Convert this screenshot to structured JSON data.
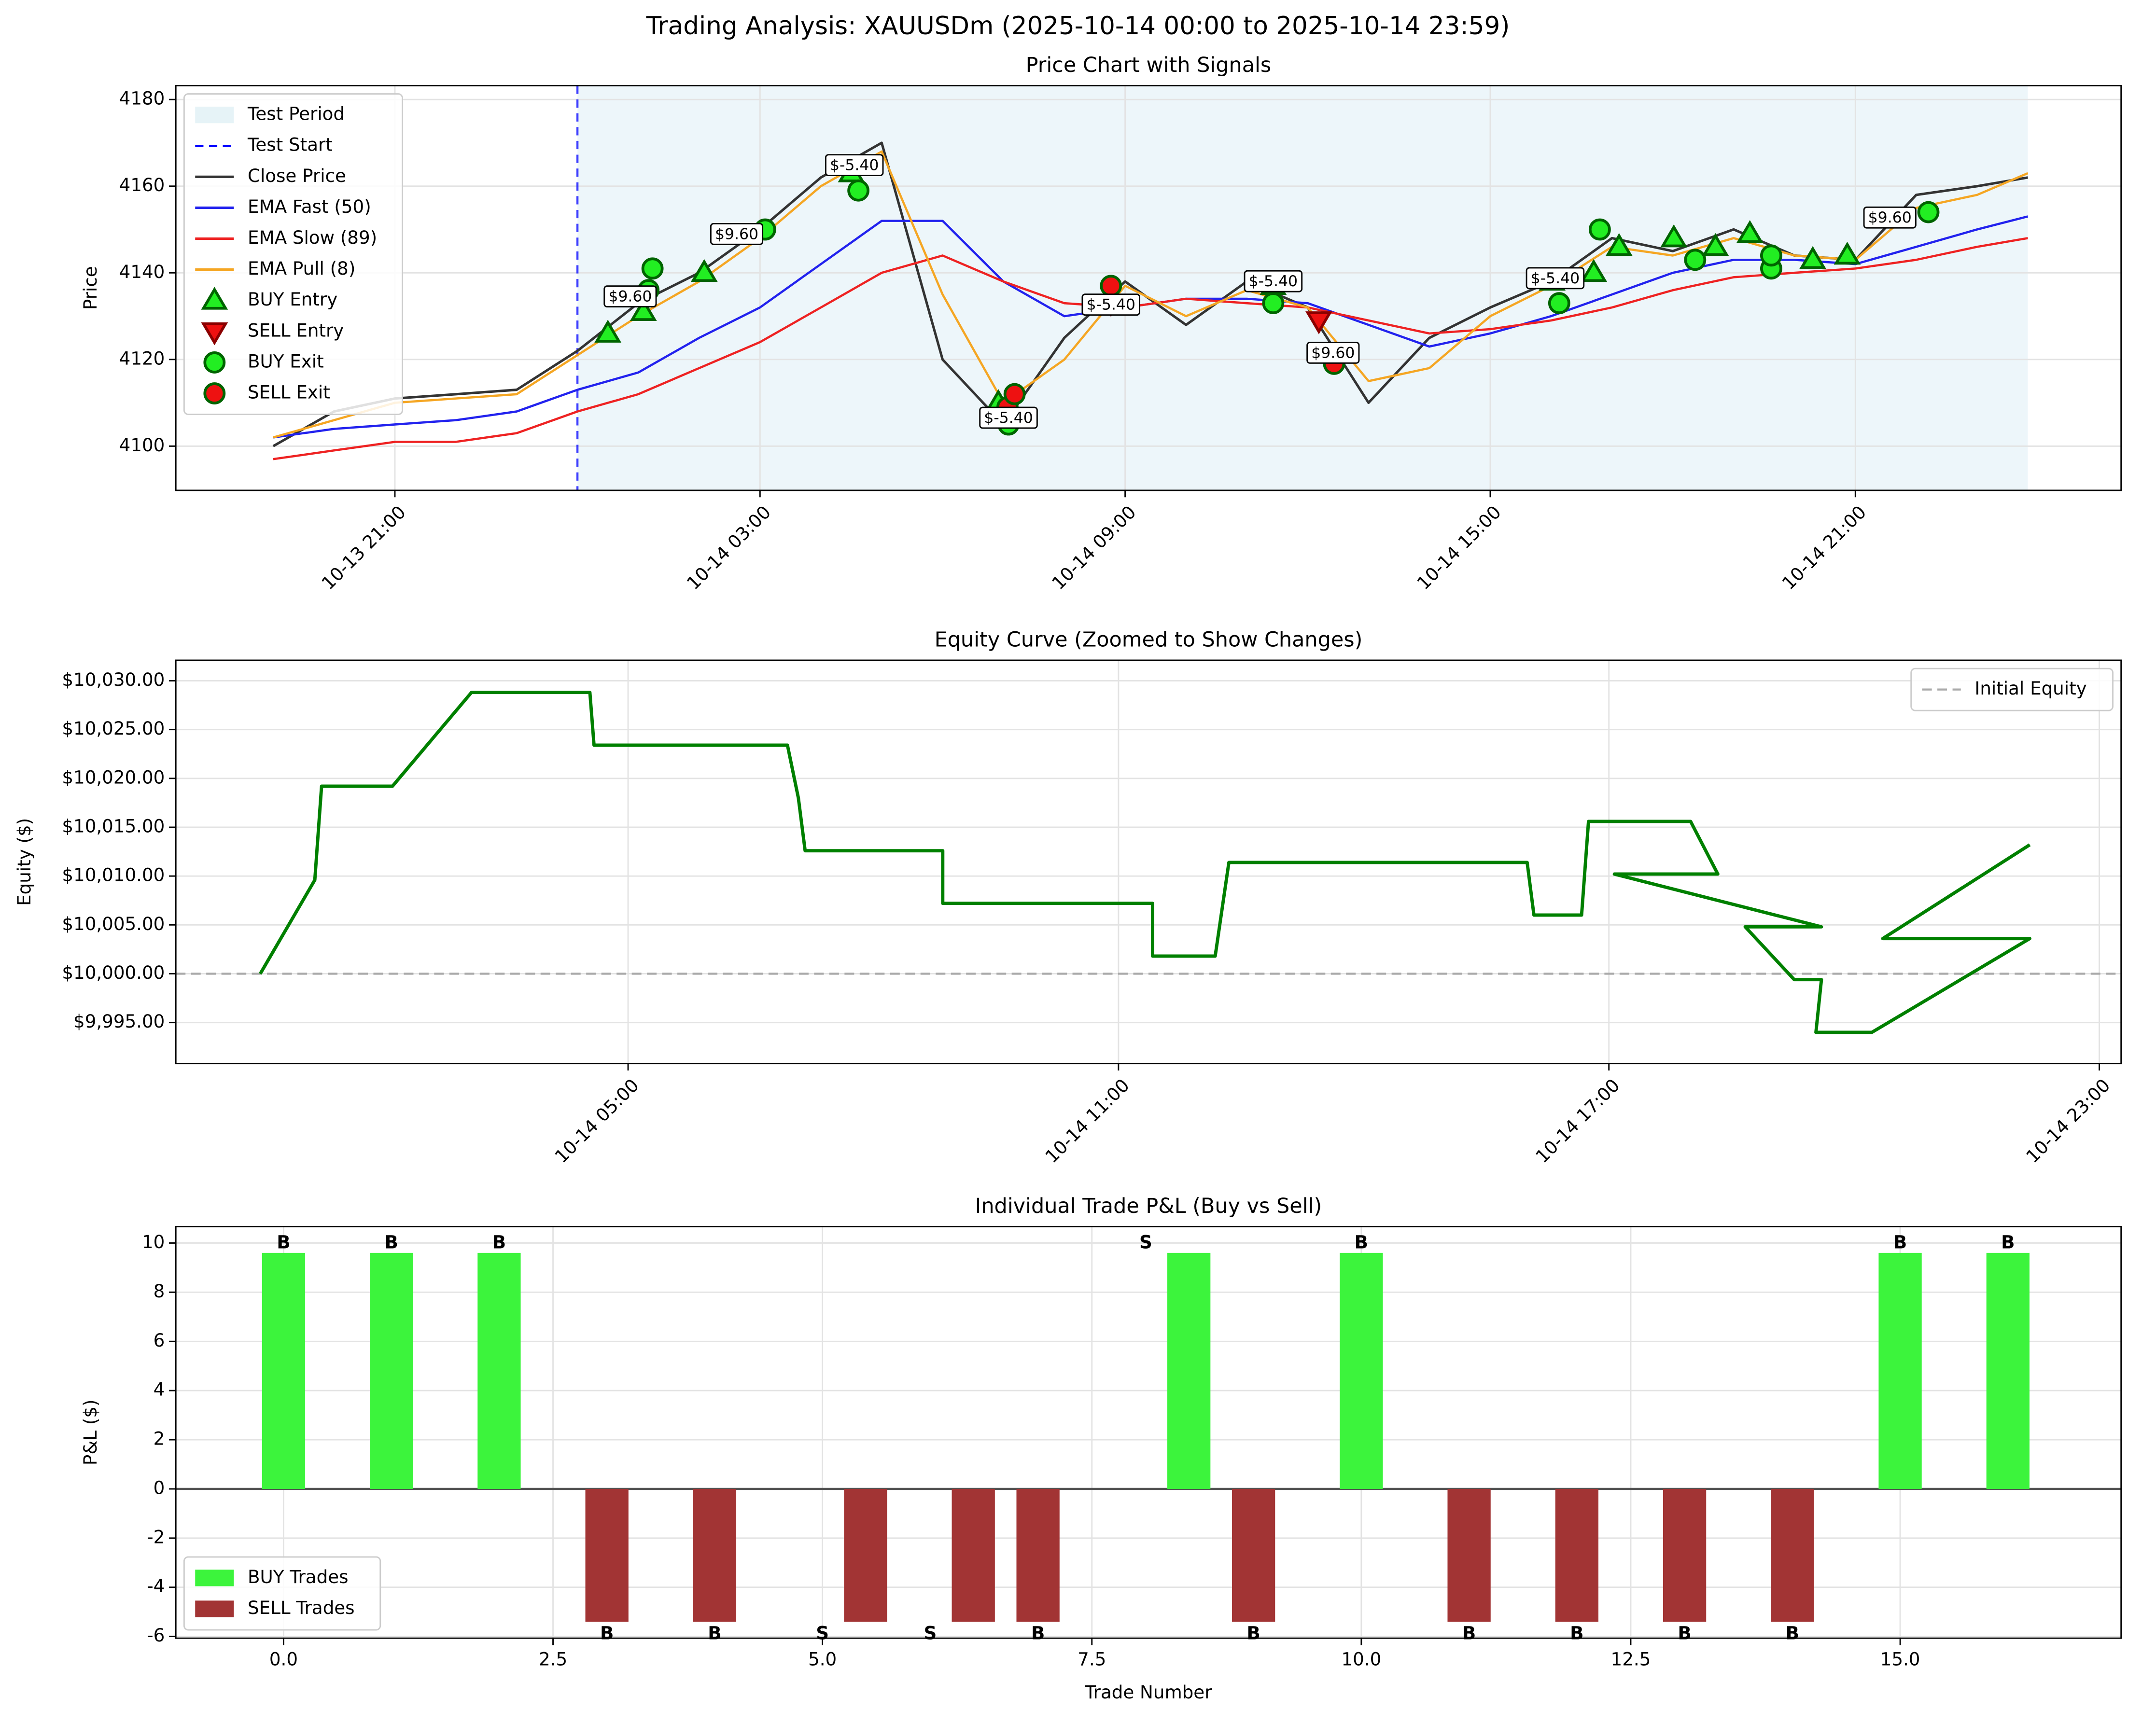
{
  "title": "Trading Analysis: XAUUSDm (2025-10-14 00:00 to 2025-10-14 23:59)",
  "chart_data": [
    {
      "type": "line",
      "title": "Price Chart with Signals",
      "ylabel": "Price",
      "x": [
        "10-13 19:00",
        "10-13 20:00",
        "10-13 21:00",
        "10-13 22:00",
        "10-13 23:00",
        "10-14 00:00",
        "10-14 01:00",
        "10-14 02:00",
        "10-14 03:00",
        "10-14 04:00",
        "10-14 05:00",
        "10-14 06:00",
        "10-14 07:00",
        "10-14 08:00",
        "10-14 09:00",
        "10-14 10:00",
        "10-14 11:00",
        "10-14 12:00",
        "10-14 13:00",
        "10-14 14:00",
        "10-14 15:00",
        "10-14 16:00",
        "10-14 17:00",
        "10-14 18:00",
        "10-14 19:00",
        "10-14 20:00",
        "10-14 21:00",
        "10-14 22:00",
        "10-14 23:00",
        "10-14 23:50"
      ],
      "xlim": [
        "10-13 17:24",
        "10-15 01:22"
      ],
      "xticks": [
        "10-13 21:00",
        "10-14 03:00",
        "10-14 09:00",
        "10-14 15:00",
        "10-14 21:00"
      ],
      "ylim": [
        4089.8,
        4183.2
      ],
      "yticks": [
        4100,
        4120,
        4140,
        4160,
        4180
      ],
      "grid": true,
      "legend": "upper left",
      "shaded_region": {
        "name": "Test Period",
        "color": "#add8e6",
        "from": "10-14 00:00",
        "to": "10-14 23:50"
      },
      "vline": {
        "name": "Test Start",
        "color": "#0000ff",
        "x": "10-14 00:00"
      },
      "series": [
        {
          "name": "Close Price",
          "color": "#333333",
          "values": [
            4100,
            4108,
            4111,
            4112,
            4113,
            4122,
            4133,
            4140,
            4150,
            4162,
            4170,
            4120,
            4105,
            4125,
            4138,
            4128,
            4138,
            4132,
            4110,
            4125,
            4132,
            4138,
            4148,
            4145,
            4150,
            4144,
            4143,
            4158,
            4160,
            4162
          ]
        },
        {
          "name": "EMA Fast (50)",
          "color": "#2222ee",
          "values": [
            4102,
            4104,
            4105,
            4106,
            4108,
            4113,
            4117,
            4125,
            4132,
            4142,
            4152,
            4152,
            4138,
            4130,
            4132,
            4134,
            4134,
            4133,
            4128,
            4123,
            4126,
            4130,
            4135,
            4140,
            4143,
            4143,
            4142,
            4146,
            4150,
            4153
          ]
        },
        {
          "name": "EMA Slow (89)",
          "color": "#ee2222",
          "values": [
            4097,
            4099,
            4101,
            4101,
            4103,
            4108,
            4112,
            4118,
            4124,
            4132,
            4140,
            4144,
            4138,
            4133,
            4132,
            4134,
            4133,
            4132,
            4129,
            4126,
            4127,
            4129,
            4132,
            4136,
            4139,
            4140,
            4141,
            4143,
            4146,
            4148
          ]
        },
        {
          "name": "EMA Pull (8)",
          "color": "#f5a623",
          "values": [
            4102,
            4106,
            4110,
            4111,
            4112,
            4121,
            4130,
            4138,
            4148,
            4160,
            4168,
            4135,
            4110,
            4120,
            4137,
            4130,
            4136,
            4132,
            4115,
            4118,
            4130,
            4137,
            4146,
            4144,
            4148,
            4144,
            4143,
            4155,
            4158,
            4163
          ]
        }
      ],
      "markers": [
        {
          "name": "BUY Entry",
          "shape": "triangle-up",
          "color": "#22ee22",
          "x": [
            "10-14 00:30",
            "10-14 01:05",
            "10-14 02:05",
            "10-14 04:30",
            "10-14 06:55",
            "10-14 11:26",
            "10-14 16:01",
            "10-14 16:42",
            "10-14 17:07",
            "10-14 18:01",
            "10-14 18:42",
            "10-14 19:16",
            "10-14 20:18",
            "10-14 20:52"
          ],
          "values": [
            4126,
            4131,
            4140,
            4163,
            4110,
            4137,
            4138,
            4140,
            4146,
            4148,
            4146,
            4149,
            4143,
            4144
          ]
        },
        {
          "name": "SELL Entry",
          "shape": "triangle-down",
          "color": "#ee1111",
          "x": [
            "10-14 08:46",
            "10-14 12:11"
          ],
          "values": [
            4133,
            4129
          ]
        },
        {
          "name": "BUY Exit",
          "shape": "circle",
          "color": "#22ee22",
          "x": [
            "10-14 01:10",
            "10-14 01:14",
            "10-14 03:05",
            "10-14 04:37",
            "10-14 07:05",
            "10-14 11:26",
            "10-14 16:08",
            "10-14 16:48",
            "10-14 18:22",
            "10-14 19:37",
            "10-14 19:37",
            "10-14 22:12"
          ],
          "values": [
            4136,
            4141,
            4150,
            4159,
            4105,
            4133,
            4133,
            4150,
            4143,
            4141,
            4144,
            4154
          ]
        },
        {
          "name": "SELL Exit",
          "shape": "circle",
          "color": "#ee1111",
          "x": [
            "10-14 07:04",
            "10-14 07:11",
            "10-14 08:46",
            "10-14 12:26"
          ],
          "values": [
            4109,
            4112,
            4137,
            4119
          ]
        }
      ],
      "annotations": [
        {
          "text": "$9.60",
          "x": "10-14 00:52",
          "y": 4134.4
        },
        {
          "text": "$9.60",
          "x": "10-14 02:37",
          "y": 4148.8
        },
        {
          "text": "$-5.40",
          "x": "10-14 04:33",
          "y": 4164.7
        },
        {
          "text": "$-5.40",
          "x": "10-14 07:05",
          "y": 4106.4
        },
        {
          "text": "$-5.40",
          "x": "10-14 08:46",
          "y": 4132.5
        },
        {
          "text": "$-5.40",
          "x": "10-14 11:26",
          "y": 4137.9
        },
        {
          "text": "$9.60",
          "x": "10-14 12:25",
          "y": 4121.4
        },
        {
          "text": "$-5.40",
          "x": "10-14 16:04",
          "y": 4138.6
        },
        {
          "text": "$9.60",
          "x": "10-14 21:34",
          "y": 4152.6
        }
      ]
    },
    {
      "type": "line",
      "title": "Equity Curve (Zoomed to Show Changes)",
      "ylabel": "Equity ($)",
      "color": "#008000",
      "x": [
        "10-14 00:30",
        "10-14 01:10",
        "10-14 01:15",
        "10-14 02:07",
        "10-14 03:05",
        "10-14 04:32",
        "10-14 04:35",
        "10-14 06:57",
        "10-14 07:05",
        "10-14 07:10",
        "10-14 08:51",
        "10-14 08:51",
        "10-14 11:25",
        "10-14 11:25",
        "10-14 12:11",
        "10-14 12:21",
        "10-14 16:00",
        "10-14 16:05",
        "10-14 16:40",
        "10-14 16:45",
        "10-14 18:00",
        "10-14 18:20",
        "10-14 17:04",
        "10-14 19:36",
        "10-14 18:40",
        "10-14 19:16",
        "10-14 19:36",
        "10-14 19:32",
        "10-14 20:13",
        "10-14 22:09",
        "10-14 20:21",
        "10-14 22:09"
      ],
      "values": [
        10000,
        10009.6,
        10019.2,
        10019.2,
        10028.8,
        10028.8,
        10023.4,
        10023.4,
        10018,
        10012.6,
        10012.6,
        10007.2,
        10007.2,
        10001.8,
        10001.8,
        10011.4,
        10011.4,
        10006,
        10006,
        10015.6,
        10015.6,
        10010.2,
        10010.2,
        10004.8,
        10004.8,
        9999.4,
        9999.4,
        9994,
        9994,
        10003.6,
        10003.6,
        10013.2
      ],
      "xlim": [
        "10-13 23:28",
        "10-14 23:16"
      ],
      "xticks": [
        "10-14 05:00",
        "10-14 11:00",
        "10-14 17:00",
        "10-14 23:00"
      ],
      "ylim": [
        9990.8,
        10032.1
      ],
      "yticks": [
        {
          "value": 9995,
          "label": "$9,995.00"
        },
        {
          "value": 10000,
          "label": "$10,000.00"
        },
        {
          "value": 10005,
          "label": "$10,005.00"
        },
        {
          "value": 10010,
          "label": "$10,010.00"
        },
        {
          "value": 10015,
          "label": "$10,015.00"
        },
        {
          "value": 10020,
          "label": "$10,020.00"
        },
        {
          "value": 10025,
          "label": "$10,025.00"
        },
        {
          "value": 10030,
          "label": "$10,030.00"
        }
      ],
      "grid": true,
      "legend": "upper right",
      "hline": {
        "name": "Initial Equity",
        "value": 10000,
        "color": "#aaaaaa"
      }
    },
    {
      "type": "bar",
      "title": "Individual Trade P&L (Buy vs Sell)",
      "xlabel": "Trade Number",
      "ylabel": "P&L ($)",
      "xlim": [
        -1.0,
        17.05
      ],
      "ylim": [
        -6.07,
        10.67
      ],
      "xticks": [
        {
          "value": 0,
          "label": "0.0"
        },
        2.5,
        {
          "value": 5,
          "label": "5.0"
        },
        7.5,
        {
          "value": 10,
          "label": "10.0"
        },
        12.5,
        {
          "value": 15,
          "label": "15.0"
        }
      ],
      "yticks": [
        -6,
        -4,
        -2,
        0,
        2,
        4,
        6,
        8,
        10
      ],
      "grid": true,
      "legend": "lower left",
      "series": [
        {
          "name": "BUY Trades",
          "color": "#3cf43c"
        },
        {
          "name": "SELL Trades",
          "color": "#a23434"
        }
      ],
      "trades": {
        "x": [
          0,
          1,
          2,
          3,
          4,
          5,
          6,
          7,
          8,
          9,
          10,
          11,
          12,
          13,
          14,
          15,
          16
        ],
        "values": [
          9.6,
          9.6,
          9.6,
          -5.4,
          -5.4,
          -5.4,
          -5.4,
          -5.4,
          9.6,
          -5.4,
          9.6,
          -5.4,
          -5.4,
          -5.4,
          -5.4,
          9.6,
          9.6
        ],
        "labels": [
          "B",
          "B",
          "B",
          "B",
          "B",
          "S",
          "S",
          "B",
          "S",
          "B",
          "B",
          "B",
          "B",
          "B",
          "B",
          "B",
          "B"
        ]
      }
    }
  ]
}
